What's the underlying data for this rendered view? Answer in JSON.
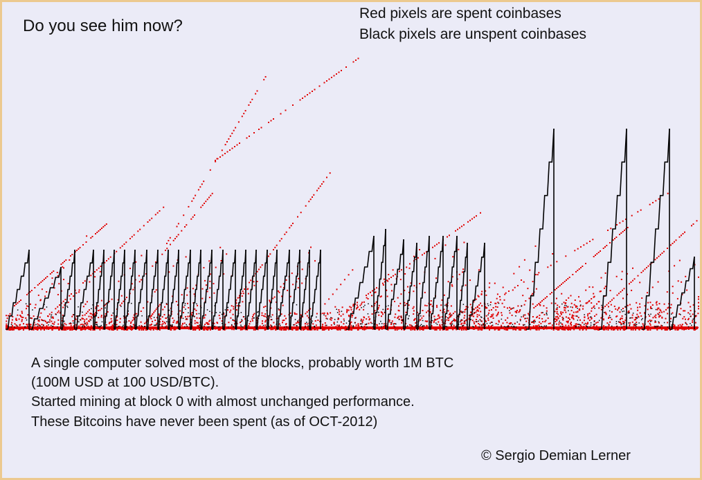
{
  "title": "Do you see him now?",
  "legend": [
    "Red pixels are spent coinbases",
    "Black pixels are unspent coinbases"
  ],
  "notes": [
    "A single computer solved most of the blocks, probably worth 1M BTC",
    "(100M USD at 100 USD/BTC).",
    "Started mining at block 0 with almost unchanged performance.",
    "These Bitcoins have never been spent (as of OCT-2012)"
  ],
  "copyright": "© Sergio Demian Lerner",
  "colors": {
    "spent": "#e00000",
    "unspent": "#000000",
    "background": "#ebebf7",
    "border": "#ecc98f"
  },
  "chart_data": {
    "type": "scatter",
    "title": "Do you see him now?",
    "axes_visible": false,
    "grid": false,
    "legend_placement": "top-right",
    "xlim": [
      0,
      1000
    ],
    "ylim": [
      0,
      460
    ],
    "series": [
      {
        "name": "Black pixels are unspent coinbases",
        "color": "#000000",
        "sawtooth_peaks": [
          [
            34,
            115
          ],
          [
            80,
            90
          ],
          [
            100,
            115
          ],
          [
            127,
            115
          ],
          [
            142,
            115
          ],
          [
            157,
            115
          ],
          [
            172,
            115
          ],
          [
            187,
            115
          ],
          [
            204,
            115
          ],
          [
            220,
            115
          ],
          [
            235,
            115
          ],
          [
            250,
            115
          ],
          [
            267,
            115
          ],
          [
            282,
            115
          ],
          [
            298,
            115
          ],
          [
            314,
            115
          ],
          [
            332,
            115
          ],
          [
            347,
            115
          ],
          [
            362,
            115
          ],
          [
            378,
            115
          ],
          [
            392,
            115
          ],
          [
            410,
            115
          ],
          [
            425,
            115
          ],
          [
            439,
            115
          ],
          [
            455,
            115
          ],
          [
            532,
            135
          ],
          [
            549,
            145
          ],
          [
            575,
            130
          ],
          [
            594,
            125
          ],
          [
            612,
            135
          ],
          [
            632,
            135
          ],
          [
            652,
            135
          ],
          [
            667,
            125
          ],
          [
            692,
            125
          ],
          [
            792,
            290
          ],
          [
            897,
            290
          ],
          [
            959,
            290
          ],
          [
            995,
            105
          ]
        ]
      },
      {
        "name": "Red pixels are spent coinbases",
        "color": "#e00000",
        "streaks": [
          [
            232,
            125,
            377,
            370
          ],
          [
            302,
            245,
            512,
            395
          ],
          [
            12,
            35,
            147,
            155
          ],
          [
            60,
            20,
            230,
            180
          ],
          [
            160,
            30,
            300,
            200
          ],
          [
            330,
            40,
            470,
            230
          ],
          [
            520,
            50,
            700,
            180
          ],
          [
            700,
            40,
            960,
            200
          ],
          [
            760,
            30,
            900,
            150
          ],
          [
            850,
            20,
            1000,
            160
          ]
        ]
      }
    ]
  }
}
